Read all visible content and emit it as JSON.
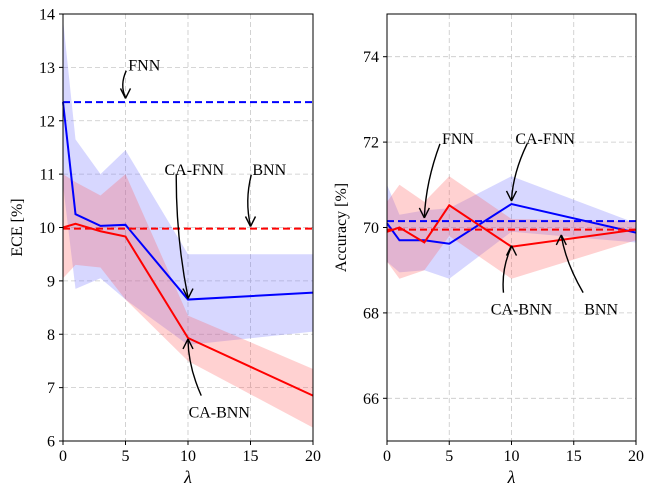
{
  "chart_data": [
    {
      "type": "line",
      "xlabel": "λ",
      "ylabel": "ECE [%]",
      "xlim": [
        0,
        20
      ],
      "ylim": [
        6,
        14
      ],
      "xticks": [
        0,
        5,
        10,
        15,
        20
      ],
      "yticks": [
        6,
        7,
        8,
        9,
        10,
        11,
        12,
        13,
        14
      ],
      "grid": true,
      "series": [
        {
          "key": "ca_fnn",
          "color": "#0000ff",
          "style": "solid",
          "x": [
            0,
            1,
            3,
            5,
            10,
            20
          ],
          "y": [
            12.35,
            10.25,
            10.03,
            10.05,
            8.65,
            8.78
          ],
          "band_upper": [
            13.9,
            11.65,
            11.0,
            11.45,
            9.5,
            9.5
          ],
          "band_lower": [
            10.8,
            8.85,
            9.05,
            8.65,
            7.8,
            8.05
          ]
        },
        {
          "key": "ca_bnn",
          "color": "#ff0000",
          "style": "solid",
          "x": [
            0,
            1,
            3,
            5,
            10,
            20
          ],
          "y": [
            10.0,
            10.07,
            9.93,
            9.83,
            7.93,
            6.85
          ],
          "band_upper": [
            11.0,
            10.85,
            10.6,
            11.0,
            8.35,
            7.35
          ],
          "band_lower": [
            9.05,
            9.3,
            9.25,
            8.65,
            7.5,
            6.25
          ]
        },
        {
          "key": "fnn",
          "color": "#0000ff",
          "style": "dashed",
          "x": [
            0,
            20
          ],
          "y": [
            12.35,
            12.35
          ]
        },
        {
          "key": "bnn",
          "color": "#ff0000",
          "style": "dashed",
          "x": [
            0,
            20
          ],
          "y": [
            9.98,
            9.98
          ]
        }
      ],
      "annotations": [
        {
          "text": "FNN",
          "text_at": [
            6.5,
            13.05
          ],
          "point_to": [
            5,
            12.4
          ]
        },
        {
          "text": "CA-FNN",
          "text_at": [
            10.5,
            11.1
          ],
          "point_to": [
            10,
            8.65
          ]
        },
        {
          "text": "BNN",
          "text_at": [
            16.5,
            11.1
          ],
          "point_to": [
            15,
            10.0
          ]
        },
        {
          "text": "CA-BNN",
          "text_at": [
            12.5,
            6.55
          ],
          "point_to": [
            10,
            7.93
          ]
        }
      ]
    },
    {
      "type": "line",
      "xlabel": "λ",
      "ylabel": "Accuracy [%]",
      "xlim": [
        0,
        20
      ],
      "ylim": [
        65,
        75
      ],
      "xticks": [
        0,
        5,
        10,
        15,
        20
      ],
      "yticks": [
        66,
        68,
        70,
        72,
        74
      ],
      "grid": true,
      "series": [
        {
          "key": "ca_fnn",
          "color": "#0000ff",
          "style": "solid",
          "x": [
            0,
            1,
            3,
            5,
            10,
            20
          ],
          "y": [
            70.1,
            69.7,
            69.7,
            69.62,
            70.55,
            69.88
          ],
          "band_upper": [
            71.0,
            70.3,
            70.4,
            70.45,
            71.2,
            70.1
          ],
          "band_lower": [
            69.2,
            68.95,
            69.0,
            68.8,
            69.9,
            69.65
          ]
        },
        {
          "key": "ca_bnn",
          "color": "#ff0000",
          "style": "solid",
          "x": [
            0,
            1,
            3,
            5,
            10,
            20
          ],
          "y": [
            69.9,
            70.0,
            69.65,
            70.52,
            69.55,
            69.95
          ],
          "band_upper": [
            70.6,
            71.0,
            70.6,
            71.2,
            70.2,
            70.15
          ],
          "band_lower": [
            69.2,
            68.8,
            69.0,
            69.8,
            68.8,
            69.7
          ]
        },
        {
          "key": "fnn",
          "color": "#0000ff",
          "style": "dashed",
          "x": [
            0,
            20
          ],
          "y": [
            70.15,
            70.15
          ]
        },
        {
          "key": "bnn",
          "color": "#ff0000",
          "style": "dashed",
          "x": [
            0,
            20
          ],
          "y": [
            69.95,
            69.95
          ]
        }
      ],
      "annotations": [
        {
          "text": "FNN",
          "text_at": [
            5.7,
            72.1
          ],
          "point_to": [
            3,
            70.2
          ]
        },
        {
          "text": "CA-FNN",
          "text_at": [
            12.7,
            72.1
          ],
          "point_to": [
            10,
            70.6
          ]
        },
        {
          "text": "CA-BNN",
          "text_at": [
            10.8,
            68.1
          ],
          "point_to": [
            10,
            69.6
          ]
        },
        {
          "text": "BNN",
          "text_at": [
            17.2,
            68.1
          ],
          "point_to": [
            14,
            69.85
          ]
        }
      ]
    }
  ]
}
